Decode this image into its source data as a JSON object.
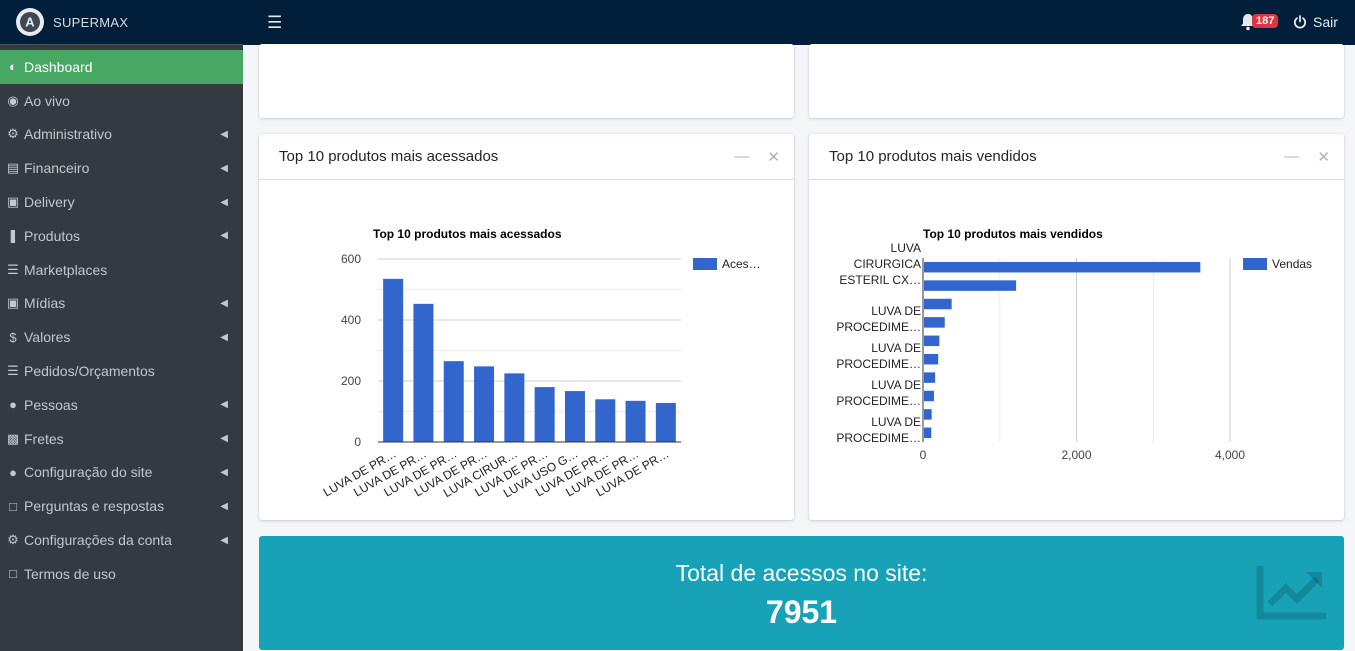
{
  "brand": {
    "name": "SUPERMAX",
    "logo_letter": "A"
  },
  "topbar": {
    "notifications_count": "187",
    "logout_label": "Sair"
  },
  "sidebar": {
    "items": [
      {
        "label": "Dashboard",
        "icon": "tachometer-icon",
        "active": true,
        "has_arrow": false
      },
      {
        "label": "Ao vivo",
        "icon": "eye-icon",
        "has_arrow": false
      },
      {
        "label": "Administrativo",
        "icon": "gears-icon",
        "has_arrow": true
      },
      {
        "label": "Financeiro",
        "icon": "money-bill-icon",
        "has_arrow": true
      },
      {
        "label": "Delivery",
        "icon": "bag-icon",
        "has_arrow": true
      },
      {
        "label": "Produtos",
        "icon": "barcode-icon",
        "has_arrow": true
      },
      {
        "label": "Marketplaces",
        "icon": "list-icon",
        "has_arrow": false
      },
      {
        "label": "Mídias",
        "icon": "images-icon",
        "has_arrow": true
      },
      {
        "label": "Valores",
        "icon": "dollar-icon",
        "has_arrow": true
      },
      {
        "label": "Pedidos/Orçamentos",
        "icon": "list-icon",
        "has_arrow": false
      },
      {
        "label": "Pessoas",
        "icon": "users-icon",
        "has_arrow": true
      },
      {
        "label": "Fretes",
        "icon": "truck-icon",
        "has_arrow": true
      },
      {
        "label": "Configuração do site",
        "icon": "globe-icon",
        "has_arrow": true
      },
      {
        "label": "Perguntas e respostas",
        "icon": "copy-icon",
        "has_arrow": true
      },
      {
        "label": "Configurações da conta",
        "icon": "gears-icon",
        "has_arrow": true
      },
      {
        "label": "Termos de uso",
        "icon": "copy-icon",
        "has_arrow": false
      }
    ]
  },
  "cards": {
    "accessed": {
      "title": "Top 10 produtos mais acessados"
    },
    "sold": {
      "title": "Top 10 produtos mais vendidos"
    }
  },
  "info_box": {
    "label": "Total de acessos no site:",
    "value": "7951",
    "icon": "chart-line-icon"
  },
  "colors": {
    "bar": "#3366cc",
    "active": "#48a763",
    "info": "#17a2b8",
    "topbar": "#011f3b",
    "sidebar": "#343a40"
  },
  "chart_data": [
    {
      "type": "bar",
      "title": "Top 10 produtos mais acessados",
      "categories": [
        "LUVA DE PR…",
        "LUVA DE PR…",
        "LUVA DE PR…",
        "LUVA DE PR…",
        "LUVA CIRUR…",
        "LUVA DE PR…",
        "LUVA USO G…",
        "LUVA DE PR…",
        "LUVA DE PR…",
        "LUVA DE PR…"
      ],
      "series": [
        {
          "name": "Aces…",
          "values": [
            535,
            453,
            265,
            248,
            225,
            180,
            167,
            140,
            135,
            128
          ]
        }
      ],
      "ylim": [
        0,
        600
      ],
      "yticks": [
        "0",
        "200",
        "400",
        "600"
      ],
      "grid": true,
      "legend": "right"
    },
    {
      "type": "bar",
      "orientation": "horizontal",
      "title": "Top 10 produtos mais vendidos",
      "category_labels": [
        [
          "LUVA",
          "CIRURGICA",
          "ESTERIL CX…"
        ],
        [
          "LUVA DE",
          "PROCEDIME…"
        ],
        [
          "LUVA DE",
          "PROCEDIME…"
        ],
        [
          "LUVA DE",
          "PROCEDIME…"
        ],
        [
          "LUVA DE",
          "PROCEDIME…"
        ]
      ],
      "series": [
        {
          "name": "Vendas",
          "values": [
            3600,
            1200,
            360,
            270,
            200,
            185,
            145,
            130,
            100,
            95
          ]
        }
      ],
      "xlim": [
        0,
        4000
      ],
      "xticks": [
        "0",
        "2,000",
        "4,000"
      ],
      "grid": true,
      "legend": "right"
    }
  ]
}
